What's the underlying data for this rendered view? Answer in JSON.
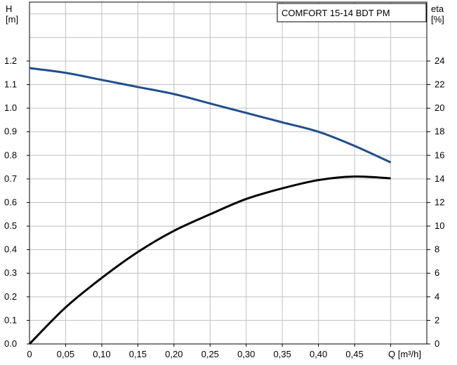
{
  "chart_data": {
    "type": "line",
    "title": "COMFORT 15-14 BDT PM",
    "x": {
      "label": "Q [m³/h]",
      "range": [
        0,
        0.55
      ],
      "ticks": [
        "0",
        "0,05",
        "0,10",
        "0,15",
        "0,20",
        "0,25",
        "0,30",
        "0,35",
        "0,40",
        "0,45"
      ]
    },
    "y_left": {
      "label_top": "H",
      "label_unit": "[m]",
      "range": [
        0,
        1.45
      ],
      "ticks": [
        "0.0",
        "0.1",
        "0.2",
        "0.3",
        "0.4",
        "0.5",
        "0.6",
        "0.7",
        "0.8",
        "0.9",
        "1.0",
        "1.1",
        "1.2"
      ]
    },
    "y_right": {
      "label_top": "eta",
      "label_unit": "[%]",
      "range": [
        0,
        29
      ],
      "ticks": [
        "0",
        "2",
        "4",
        "6",
        "8",
        "10",
        "12",
        "14",
        "16",
        "18",
        "20",
        "22",
        "24"
      ]
    },
    "grid": true,
    "series": [
      {
        "axis": "left",
        "color": "#1f4e8c",
        "x": [
          0,
          0.05,
          0.1,
          0.15,
          0.2,
          0.25,
          0.3,
          0.35,
          0.4,
          0.45,
          0.5
        ],
        "y": [
          1.17,
          1.15,
          1.12,
          1.09,
          1.06,
          1.02,
          0.98,
          0.94,
          0.9,
          0.84,
          0.77
        ]
      },
      {
        "axis": "right",
        "color": "#000000",
        "x": [
          0,
          0.05,
          0.1,
          0.15,
          0.2,
          0.25,
          0.3,
          0.35,
          0.4,
          0.45,
          0.5
        ],
        "y": [
          0,
          3.1,
          5.6,
          7.8,
          9.6,
          11.0,
          12.3,
          13.2,
          13.9,
          14.2,
          14.05
        ]
      }
    ]
  }
}
